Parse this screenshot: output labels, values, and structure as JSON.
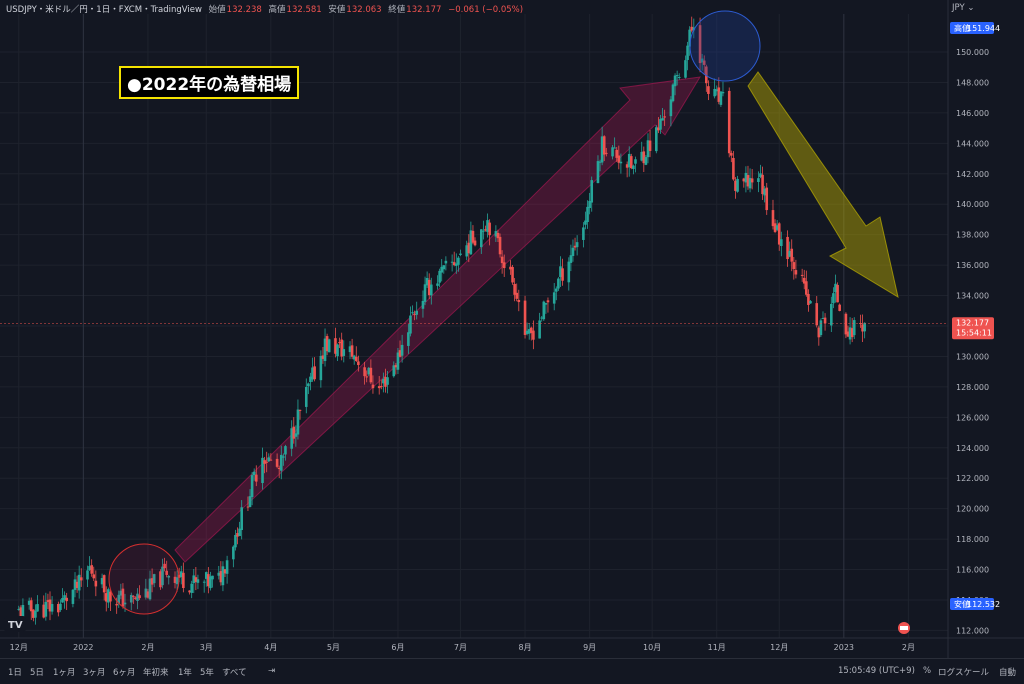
{
  "header": {
    "symbol": "USDJPY・米ドル／円・1日・FXCM・TradingView",
    "open_label": "始値",
    "open": "132.238",
    "high_label": "高値",
    "high": "132.581",
    "low_label": "安値",
    "low": "132.063",
    "close_label": "終値",
    "close": "132.177",
    "change": "−0.061 (−0.05%)",
    "currency": "JPY"
  },
  "annotation_title": "●2022年の為替相場",
  "price_badges": {
    "high_label": "高値",
    "high_value": "151.944",
    "low_label": "安値",
    "low_value": "112.532",
    "last_value": "132.177",
    "countdown": "15:54:11"
  },
  "toolbar": {
    "ranges": [
      "1日",
      "5日",
      "1ヶ月",
      "3ヶ月",
      "6ヶ月",
      "年初来",
      "1年",
      "5年",
      "すべて"
    ],
    "time": "15:05:49 (UTC+9)",
    "percent": "%",
    "log_scale": "ログスケール",
    "auto": "自動"
  },
  "colors": {
    "up": "#26a69a",
    "down": "#ef5350",
    "background": "#131722",
    "grid": "#1e222d",
    "title_border": "#f5e400"
  },
  "chart_data": {
    "type": "candlestick",
    "symbol": "USDJPY",
    "interval": "1D",
    "ylim": [
      111.5,
      152.5
    ],
    "y_ticks": [
      "112.000",
      "114.000",
      "116.000",
      "118.000",
      "120.000",
      "122.000",
      "124.000",
      "126.000",
      "128.000",
      "130.000",
      "132.000",
      "134.000",
      "136.000",
      "138.000",
      "140.000",
      "142.000",
      "144.000",
      "146.000",
      "148.000",
      "150.000"
    ],
    "x_ticks": [
      "12月",
      "2022",
      "2月",
      "3月",
      "4月",
      "5月",
      "6月",
      "7月",
      "8月",
      "9月",
      "10月",
      "11月",
      "12月",
      "2023",
      "2月"
    ],
    "close_series": [
      [
        "2021-12-01",
        113.2
      ],
      [
        "2021-12-10",
        113.4
      ],
      [
        "2021-12-20",
        113.6
      ],
      [
        "2021-12-31",
        115.1
      ],
      [
        "2022-01-04",
        116.1
      ],
      [
        "2022-01-14",
        114.2
      ],
      [
        "2022-01-24",
        113.9
      ],
      [
        "2022-02-01",
        114.6
      ],
      [
        "2022-02-10",
        115.9
      ],
      [
        "2022-02-24",
        115.0
      ],
      [
        "2022-03-07",
        115.3
      ],
      [
        "2022-03-15",
        118.3
      ],
      [
        "2022-03-28",
        123.6
      ],
      [
        "2022-04-05",
        122.5
      ],
      [
        "2022-04-15",
        126.4
      ],
      [
        "2022-04-27",
        130.8
      ],
      [
        "2022-05-10",
        130.2
      ],
      [
        "2022-05-23",
        127.8
      ],
      [
        "2022-06-01",
        129.9
      ],
      [
        "2022-06-07",
        132.5
      ],
      [
        "2022-06-15",
        134.5
      ],
      [
        "2022-06-28",
        136.2
      ],
      [
        "2022-07-14",
        139.0
      ],
      [
        "2022-07-28",
        134.3
      ],
      [
        "2022-08-02",
        131.0
      ],
      [
        "2022-08-10",
        133.0
      ],
      [
        "2022-08-17",
        135.0
      ],
      [
        "2022-08-29",
        138.6
      ],
      [
        "2022-09-07",
        144.0
      ],
      [
        "2022-09-22",
        142.4
      ],
      [
        "2022-10-03",
        144.6
      ],
      [
        "2022-10-14",
        148.6
      ],
      [
        "2022-10-21",
        151.9
      ],
      [
        "2022-10-28",
        147.3
      ],
      [
        "2022-11-04",
        146.7
      ],
      [
        "2022-11-10",
        140.9
      ],
      [
        "2022-11-21",
        142.0
      ],
      [
        "2022-11-30",
        138.1
      ],
      [
        "2022-12-07",
        136.7
      ],
      [
        "2022-12-20",
        131.6
      ],
      [
        "2022-12-28",
        134.2
      ],
      [
        "2023-01-04",
        131.3
      ],
      [
        "2023-01-06",
        132.1
      ],
      [
        "2023-01-11",
        132.2
      ]
    ],
    "last_price": 132.177,
    "range_high": 151.944,
    "range_low": 112.532
  }
}
